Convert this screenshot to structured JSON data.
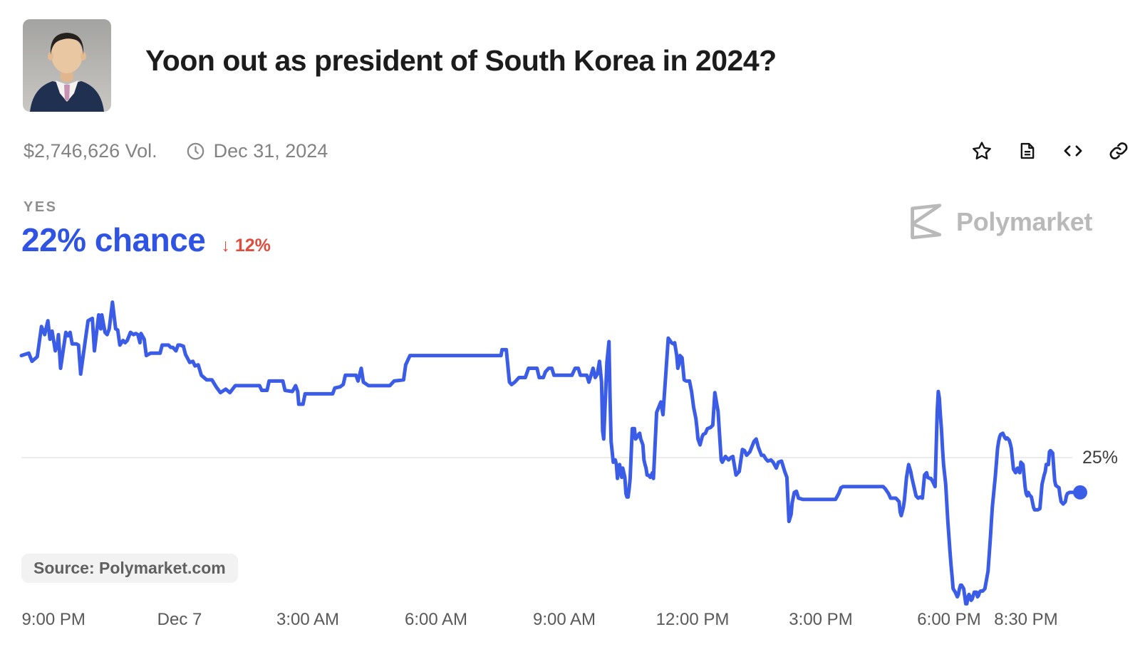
{
  "header": {
    "title": "Yoon out as president of South Korea in 2024?",
    "volume": "$2,746,626 Vol.",
    "end_date": "Dec 31, 2024"
  },
  "toolbar": {
    "icons": [
      "star-icon",
      "document-icon",
      "embed-code-icon",
      "link-icon"
    ]
  },
  "outcome": {
    "label": "YES",
    "chance": "22% chance",
    "change": "↓ 12%"
  },
  "watermark": {
    "brand": "Polymarket"
  },
  "source_badge": "Source: Polymarket.com",
  "colors": {
    "line_blue": "#3a5ce6",
    "chance_blue": "#2f53e2",
    "change_red": "#e04c3c",
    "gridline": "#ececec",
    "watermark_gray": "#b9b9b9"
  },
  "chart_data": {
    "type": "line",
    "series_name": "Yes",
    "current_value_pct": 22,
    "change_pct": -12,
    "y_gridline_pct": 25,
    "y_gridline_label": "25%",
    "y_view_range_pct": [
      10,
      40
    ],
    "grid": "single horizontal line at 25%",
    "legend_position": "none",
    "x_ticks": [
      {
        "label": "9:00 PM",
        "pos": 4.7
      },
      {
        "label": "Dec 7",
        "pos": 15.75
      },
      {
        "label": "3:00 AM",
        "pos": 27.0
      },
      {
        "label": "6:00 AM",
        "pos": 38.25
      },
      {
        "label": "9:00 AM",
        "pos": 49.5
      },
      {
        "label": "12:00 PM",
        "pos": 60.75
      },
      {
        "label": "3:00 PM",
        "pos": 72.0
      },
      {
        "label": "6:00 PM",
        "pos": 83.25
      },
      {
        "label": "8:30 PM",
        "pos": 90.0
      }
    ],
    "points": [
      [
        0,
        33.8
      ],
      [
        0.7,
        34.0
      ],
      [
        1.0,
        33.3
      ],
      [
        1.5,
        33.7
      ],
      [
        1.9,
        36.3
      ],
      [
        2.2,
        35.6
      ],
      [
        2.5,
        36.8
      ],
      [
        2.7,
        35.2
      ],
      [
        2.9,
        35.9
      ],
      [
        3.2,
        34.2
      ],
      [
        3.4,
        34.7
      ],
      [
        3.5,
        35.6
      ],
      [
        3.7,
        32.7
      ],
      [
        4.2,
        35.8
      ],
      [
        4.4,
        35.5
      ],
      [
        4.6,
        35.8
      ],
      [
        4.8,
        34.8
      ],
      [
        5.2,
        34.8
      ],
      [
        5.4,
        34.7
      ],
      [
        5.6,
        32.2
      ],
      [
        6.1,
        35.5
      ],
      [
        6.3,
        36.8
      ],
      [
        6.7,
        37.0
      ],
      [
        6.9,
        34.2
      ],
      [
        7.3,
        37.3
      ],
      [
        7.5,
        36.1
      ],
      [
        7.6,
        37.3
      ],
      [
        7.9,
        35.8
      ],
      [
        8.1,
        35.6
      ],
      [
        8.3,
        36.1
      ],
      [
        8.6,
        38.4
      ],
      [
        8.9,
        36.1
      ],
      [
        9.1,
        36.0
      ],
      [
        9.3,
        34.7
      ],
      [
        9.6,
        35.1
      ],
      [
        9.8,
        34.9
      ],
      [
        10.0,
        35.1
      ],
      [
        10.3,
        35.8
      ],
      [
        10.6,
        35.6
      ],
      [
        10.8,
        35.7
      ],
      [
        11.0,
        35.6
      ],
      [
        11.2,
        34.9
      ],
      [
        11.3,
        35.7
      ],
      [
        11.6,
        35.2
      ],
      [
        11.8,
        33.8
      ],
      [
        12.2,
        34.0
      ],
      [
        13.1,
        34.0
      ],
      [
        13.3,
        34.7
      ],
      [
        13.9,
        34.7
      ],
      [
        14.1,
        34.5
      ],
      [
        14.3,
        34.5
      ],
      [
        14.6,
        34.2
      ],
      [
        14.8,
        34.7
      ],
      [
        15.0,
        34.7
      ],
      [
        15.3,
        34.6
      ],
      [
        15.5,
        33.9
      ],
      [
        15.9,
        33.2
      ],
      [
        16.2,
        33.3
      ],
      [
        16.4,
        32.9
      ],
      [
        16.7,
        33.0
      ],
      [
        17.0,
        32.1
      ],
      [
        17.5,
        31.7
      ],
      [
        18.0,
        31.7
      ],
      [
        18.4,
        31.1
      ],
      [
        18.8,
        30.6
      ],
      [
        19.3,
        30.9
      ],
      [
        19.7,
        30.6
      ],
      [
        20.2,
        31.2
      ],
      [
        22.5,
        31.2
      ],
      [
        22.7,
        30.8
      ],
      [
        23.2,
        30.8
      ],
      [
        23.4,
        31.6
      ],
      [
        24.7,
        31.6
      ],
      [
        24.9,
        30.8
      ],
      [
        25.6,
        30.7
      ],
      [
        25.9,
        31.2
      ],
      [
        26.1,
        30.7
      ],
      [
        26.2,
        29.6
      ],
      [
        26.6,
        29.6
      ],
      [
        26.8,
        30.5
      ],
      [
        29.4,
        30.5
      ],
      [
        29.6,
        31.0
      ],
      [
        30.1,
        31.1
      ],
      [
        30.4,
        31.3
      ],
      [
        30.6,
        32.1
      ],
      [
        31.6,
        32.1
      ],
      [
        31.8,
        31.6
      ],
      [
        32.1,
        32.7
      ],
      [
        32.3,
        31.5
      ],
      [
        32.8,
        31.2
      ],
      [
        34.8,
        31.2
      ],
      [
        35.2,
        31.6
      ],
      [
        36.1,
        31.7
      ],
      [
        36.3,
        33.0
      ],
      [
        36.7,
        33.8
      ],
      [
        45.3,
        33.8
      ],
      [
        45.4,
        34.3
      ],
      [
        45.8,
        34.3
      ],
      [
        46.1,
        31.5
      ],
      [
        46.3,
        31.3
      ],
      [
        46.6,
        31.5
      ],
      [
        47.0,
        31.9
      ],
      [
        47.6,
        31.9
      ],
      [
        47.9,
        32.7
      ],
      [
        48.7,
        32.7
      ],
      [
        48.9,
        31.9
      ],
      [
        49.3,
        31.9
      ],
      [
        49.5,
        32.4
      ],
      [
        49.8,
        32.7
      ],
      [
        50.1,
        32.7
      ],
      [
        50.3,
        32.1
      ],
      [
        52.0,
        32.1
      ],
      [
        52.3,
        32.7
      ],
      [
        52.6,
        32.7
      ],
      [
        52.8,
        32.1
      ],
      [
        53.4,
        32.1
      ],
      [
        53.6,
        31.5
      ],
      [
        53.8,
        32.1
      ],
      [
        54.0,
        32.7
      ],
      [
        54.2,
        31.9
      ],
      [
        54.4,
        32.2
      ],
      [
        54.6,
        33.3
      ],
      [
        54.8,
        31.5
      ],
      [
        54.9,
        27.3
      ],
      [
        55.0,
        26.6
      ],
      [
        55.2,
        31.0
      ],
      [
        55.3,
        33.2
      ],
      [
        55.5,
        35.0
      ],
      [
        55.6,
        30.1
      ],
      [
        55.7,
        26.4
      ],
      [
        55.9,
        24.6
      ],
      [
        56.1,
        24.8
      ],
      [
        56.2,
        24.4
      ],
      [
        56.3,
        23.2
      ],
      [
        56.5,
        24.4
      ],
      [
        56.7,
        23.3
      ],
      [
        56.8,
        24.1
      ],
      [
        57.0,
        23.3
      ],
      [
        57.1,
        21.9
      ],
      [
        57.2,
        21.6
      ],
      [
        57.3,
        21.6
      ],
      [
        57.4,
        22.3
      ],
      [
        57.5,
        23.2
      ],
      [
        57.7,
        27.5
      ],
      [
        57.9,
        27.5
      ],
      [
        58.0,
        26.6
      ],
      [
        58.1,
        26.7
      ],
      [
        58.3,
        27.0
      ],
      [
        58.4,
        27.1
      ],
      [
        58.5,
        26.6
      ],
      [
        58.7,
        26.1
      ],
      [
        58.8,
        24.8
      ],
      [
        58.9,
        24.4
      ],
      [
        59.0,
        24.1
      ],
      [
        59.1,
        23.5
      ],
      [
        59.2,
        23.5
      ],
      [
        59.4,
        23.3
      ],
      [
        59.6,
        23.7
      ],
      [
        59.7,
        23.2
      ],
      [
        60.0,
        28.9
      ],
      [
        60.4,
        29.8
      ],
      [
        60.6,
        28.7
      ],
      [
        60.9,
        32.7
      ],
      [
        61.1,
        35.3
      ],
      [
        61.4,
        34.9
      ],
      [
        61.6,
        34.8
      ],
      [
        61.7,
        34.9
      ],
      [
        61.9,
        33.8
      ],
      [
        62.0,
        32.7
      ],
      [
        62.1,
        33.0
      ],
      [
        62.2,
        33.8
      ],
      [
        62.4,
        33.6
      ],
      [
        62.6,
        31.7
      ],
      [
        62.8,
        31.6
      ],
      [
        63.1,
        31.6
      ],
      [
        63.3,
        30.7
      ],
      [
        63.5,
        29.3
      ],
      [
        63.7,
        28.4
      ],
      [
        63.8,
        27.6
      ],
      [
        63.9,
        26.6
      ],
      [
        64.1,
        26.1
      ],
      [
        64.3,
        26.8
      ],
      [
        64.4,
        27.0
      ],
      [
        64.6,
        27.1
      ],
      [
        64.8,
        27.5
      ],
      [
        65.1,
        27.6
      ],
      [
        65.3,
        27.8
      ],
      [
        65.5,
        30.6
      ],
      [
        65.7,
        29.5
      ],
      [
        65.8,
        29.0
      ],
      [
        66.1,
        24.8
      ],
      [
        66.2,
        24.6
      ],
      [
        66.5,
        25.1
      ],
      [
        66.8,
        24.8
      ],
      [
        67.0,
        25.0
      ],
      [
        67.2,
        25.1
      ],
      [
        67.5,
        23.5
      ],
      [
        67.8,
        23.8
      ],
      [
        68.1,
        25.7
      ],
      [
        68.3,
        25.6
      ],
      [
        68.5,
        25.2
      ],
      [
        68.8,
        25.5
      ],
      [
        69.2,
        26.4
      ],
      [
        69.4,
        26.6
      ],
      [
        69.6,
        25.9
      ],
      [
        69.9,
        25.2
      ],
      [
        70.1,
        25.2
      ],
      [
        70.3,
        24.9
      ],
      [
        70.5,
        24.7
      ],
      [
        70.8,
        24.8
      ],
      [
        71.0,
        24.6
      ],
      [
        71.3,
        24.1
      ],
      [
        71.5,
        24.6
      ],
      [
        71.8,
        24.7
      ],
      [
        72.1,
        23.8
      ],
      [
        72.3,
        23.3
      ],
      [
        72.5,
        19.5
      ],
      [
        72.7,
        20.1
      ],
      [
        72.8,
        21.1
      ],
      [
        73.0,
        22.0
      ],
      [
        73.2,
        22.1
      ],
      [
        73.4,
        21.5
      ],
      [
        73.8,
        21.4
      ],
      [
        76.9,
        21.4
      ],
      [
        77.2,
        21.9
      ],
      [
        77.4,
        22.4
      ],
      [
        77.6,
        22.5
      ],
      [
        81.4,
        22.5
      ],
      [
        81.6,
        22.3
      ],
      [
        81.9,
        21.9
      ],
      [
        82.1,
        21.5
      ],
      [
        82.6,
        21.5
      ],
      [
        82.9,
        21.2
      ],
      [
        83.0,
        20.3
      ],
      [
        83.1,
        20.0
      ],
      [
        83.3,
        20.7
      ],
      [
        83.4,
        21.3
      ],
      [
        83.6,
        23.3
      ],
      [
        83.8,
        24.4
      ],
      [
        84.0,
        23.8
      ],
      [
        84.1,
        23.3
      ],
      [
        84.5,
        21.7
      ],
      [
        84.7,
        21.5
      ],
      [
        84.9,
        21.6
      ],
      [
        85.1,
        21.5
      ],
      [
        85.3,
        23.5
      ],
      [
        85.5,
        23.7
      ],
      [
        85.6,
        23.3
      ],
      [
        85.8,
        23.2
      ],
      [
        85.9,
        23.2
      ],
      [
        86.1,
        22.9
      ],
      [
        86.3,
        22.5
      ],
      [
        86.5,
        29.0
      ],
      [
        86.6,
        30.7
      ],
      [
        86.7,
        30.1
      ],
      [
        86.8,
        28.7
      ],
      [
        86.9,
        27.5
      ],
      [
        87.0,
        25.8
      ],
      [
        87.1,
        24.4
      ],
      [
        87.3,
        22.7
      ],
      [
        87.4,
        21.1
      ],
      [
        87.5,
        19.5
      ],
      [
        87.6,
        18.3
      ],
      [
        87.7,
        17.0
      ],
      [
        87.8,
        15.8
      ],
      [
        87.9,
        14.8
      ],
      [
        88.0,
        13.7
      ],
      [
        88.2,
        13.4
      ],
      [
        88.4,
        13.0
      ],
      [
        88.5,
        13.2
      ],
      [
        88.6,
        13.7
      ],
      [
        88.7,
        14.0
      ],
      [
        88.8,
        14.0
      ],
      [
        89.0,
        13.7
      ],
      [
        89.2,
        12.4
      ],
      [
        89.3,
        12.4
      ],
      [
        89.4,
        13.0
      ],
      [
        89.5,
        13.2
      ],
      [
        89.6,
        13.0
      ],
      [
        89.7,
        12.7
      ],
      [
        89.8,
        12.8
      ],
      [
        90.0,
        13.4
      ],
      [
        90.2,
        13.4
      ],
      [
        90.3,
        13.0
      ],
      [
        90.4,
        13.1
      ],
      [
        90.5,
        13.4
      ],
      [
        90.6,
        13.5
      ],
      [
        90.8,
        13.5
      ],
      [
        91.0,
        13.7
      ],
      [
        91.3,
        15.2
      ],
      [
        91.5,
        17.8
      ],
      [
        91.7,
        20.7
      ],
      [
        92.0,
        23.5
      ],
      [
        92.2,
        25.8
      ],
      [
        92.3,
        26.4
      ],
      [
        92.4,
        26.8
      ],
      [
        92.5,
        27.0
      ],
      [
        92.7,
        27.1
      ],
      [
        92.9,
        26.7
      ],
      [
        93.0,
        26.6
      ],
      [
        93.1,
        26.7
      ],
      [
        93.2,
        26.6
      ],
      [
        93.3,
        26.5
      ],
      [
        93.4,
        26.2
      ],
      [
        93.5,
        25.8
      ],
      [
        93.7,
        24.0
      ],
      [
        93.9,
        23.7
      ],
      [
        94.0,
        24.0
      ],
      [
        94.1,
        24.1
      ],
      [
        94.2,
        23.8
      ],
      [
        94.3,
        23.7
      ],
      [
        94.4,
        24.6
      ],
      [
        94.6,
        24.4
      ],
      [
        94.7,
        23.5
      ],
      [
        94.8,
        22.5
      ],
      [
        94.9,
        21.9
      ],
      [
        95.0,
        21.7
      ],
      [
        95.1,
        22.0
      ],
      [
        95.2,
        21.8
      ],
      [
        95.4,
        21.6
      ],
      [
        95.6,
        20.7
      ],
      [
        95.7,
        20.5
      ],
      [
        96.0,
        20.5
      ],
      [
        96.2,
        20.6
      ],
      [
        96.4,
        22.7
      ],
      [
        96.6,
        23.5
      ],
      [
        96.7,
        23.8
      ],
      [
        96.8,
        24.4
      ],
      [
        97.0,
        24.4
      ],
      [
        97.1,
        25.5
      ],
      [
        97.2,
        25.6
      ],
      [
        97.4,
        25.4
      ],
      [
        97.6,
        23.0
      ],
      [
        97.7,
        22.6
      ],
      [
        98.0,
        22.4
      ],
      [
        98.1,
        21.7
      ],
      [
        98.2,
        21.2
      ],
      [
        98.4,
        21.0
      ],
      [
        98.6,
        21.2
      ],
      [
        98.7,
        21.7
      ],
      [
        98.8,
        21.9
      ],
      [
        99.0,
        22.0
      ],
      [
        100,
        22.0
      ]
    ]
  }
}
